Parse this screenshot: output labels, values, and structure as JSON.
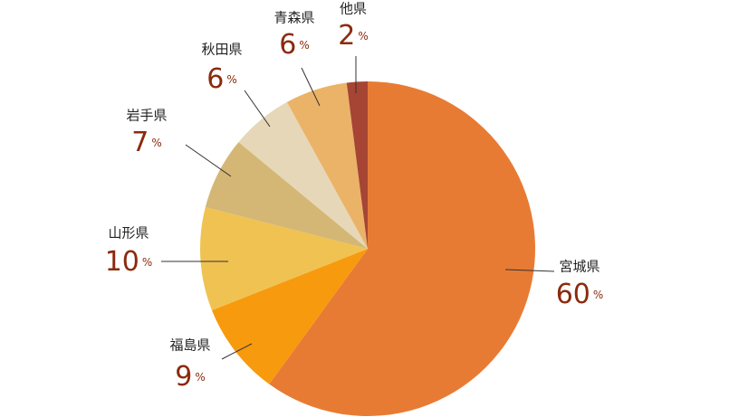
{
  "chart_data": {
    "type": "pie",
    "unit": "%",
    "categories": [
      "宮城県",
      "福島県",
      "山形県",
      "岩手県",
      "秋田県",
      "青森県",
      "他県"
    ],
    "values": [
      60,
      9,
      10,
      7,
      6,
      6,
      2
    ],
    "colors": [
      "#e87b34",
      "#f79a0e",
      "#efc252",
      "#d4b775",
      "#e6d7b8",
      "#ebb367",
      "#a64534"
    ]
  }
}
